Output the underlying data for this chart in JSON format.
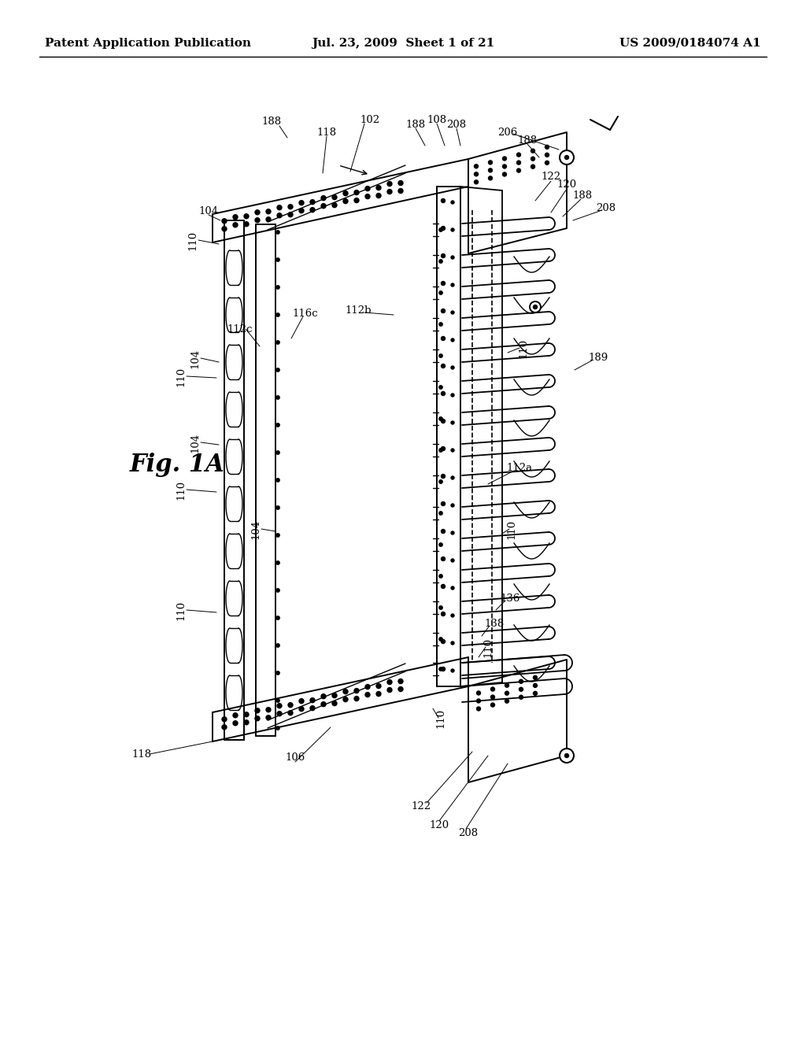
{
  "title_left": "Patent Application Publication",
  "title_mid": "Jul. 23, 2009  Sheet 1 of 21",
  "title_right": "US 2009/0184074 A1",
  "fig_label": "Fig. 1A",
  "bg_color": "#ffffff",
  "line_color": "#000000",
  "title_fontsize": 11,
  "fig_label_fontsize": 22,
  "label_fontsize": 9.5
}
